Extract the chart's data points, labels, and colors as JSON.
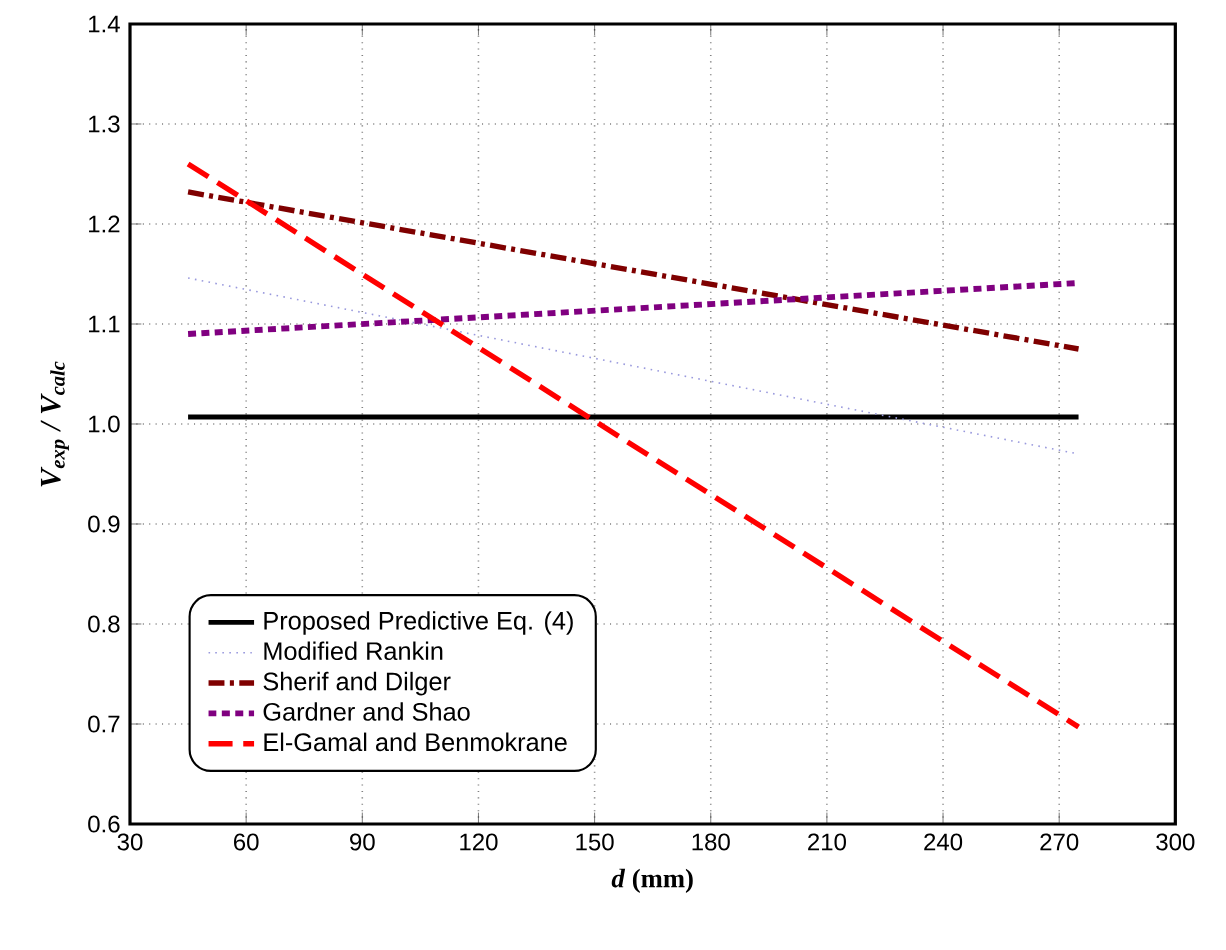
{
  "chart_data": {
    "type": "line",
    "xlabel": "*d* (mm)",
    "ylabel": "V$_{exp}$ / V$_{calc}$",
    "x": [
      45,
      275
    ],
    "series": [
      {
        "name": "Proposed Predictive Eq. (4)",
        "color": "#000000",
        "values": [
          1.007,
          1.007
        ],
        "line_style": "solid"
      },
      {
        "name": "Modified Rankin",
        "color": "#9999dd",
        "values": [
          1.146,
          0.97
        ],
        "line_style": "dotted"
      },
      {
        "name": "Sherif and Dilger",
        "color": "#7f0000",
        "values": [
          1.232,
          1.075
        ],
        "line_style": "dashdot"
      },
      {
        "name": "Gardner and Shao",
        "color": "#800080",
        "values": [
          1.09,
          1.141
        ],
        "line_style": "dotted"
      },
      {
        "name": "El-Gamal and Benmokrane",
        "color": "#ff0000",
        "values": [
          1.26,
          0.697
        ],
        "line_style": "dashed"
      }
    ],
    "xlim": [
      30,
      300
    ],
    "xticks": [
      30,
      60,
      90,
      120,
      150,
      180,
      210,
      240,
      270,
      300
    ],
    "ylim": [
      0.6,
      1.4
    ],
    "yticks": [
      0.6,
      0.7,
      0.8,
      0.9,
      {
        "value": 1.0,
        "label": "1.0"
      },
      1.1,
      1.2,
      1.3,
      1.4
    ],
    "grid": true,
    "legend": "bottom left",
    "marker": "none"
  }
}
